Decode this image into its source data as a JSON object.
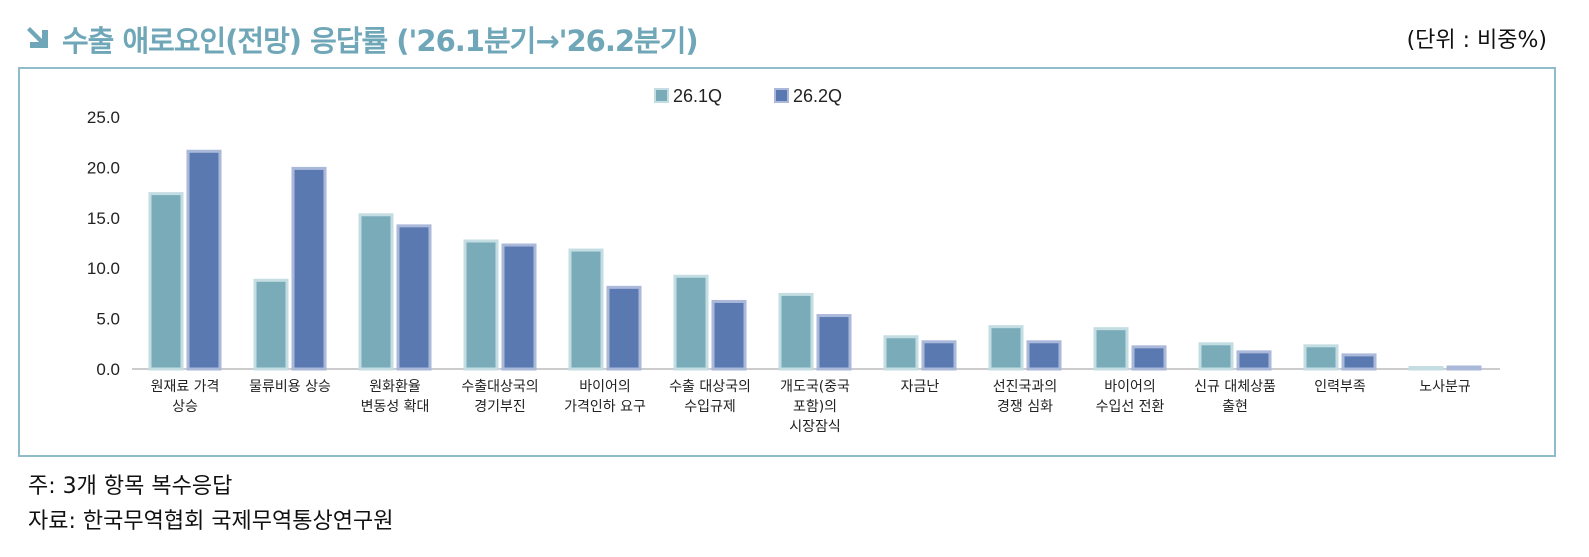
{
  "title": "수출 애로요인(전망) 응답률 ('26.1분기→'26.2분기)",
  "unit": "(단위 : 비중%)",
  "notes": [
    "주: 3개 항목 복수응답",
    "자료: 한국무역협회 국제무역통상연구원"
  ],
  "chart_data": {
    "type": "bar",
    "title": "수출 애로요인(전망) 응답률 ('26.1분기→'26.2분기)",
    "ylabel": "비중%",
    "ylim": [
      0,
      25
    ],
    "yticks": [
      "0.0",
      "5.0",
      "10.0",
      "15.0",
      "20.0",
      "25.0"
    ],
    "legend_position": "top-center",
    "grid": false,
    "categories": [
      [
        "원재료 가격",
        "상승"
      ],
      [
        "물류비용 상승"
      ],
      [
        "원화환율",
        "변동성 확대"
      ],
      [
        "수출대상국의",
        "경기부진"
      ],
      [
        "바이어의",
        "가격인하 요구"
      ],
      [
        "수출 대상국의",
        "수입규제"
      ],
      [
        "개도국(중국",
        "포함)의",
        "시장잠식"
      ],
      [
        "자금난"
      ],
      [
        "선진국과의",
        "경쟁 심화"
      ],
      [
        "바이어의",
        "수입선 전환"
      ],
      [
        "신규 대체상품",
        "출현"
      ],
      [
        "인력부족"
      ],
      [
        "노사분규"
      ]
    ],
    "series": [
      {
        "name": "26.1Q",
        "color": "#7aabb9",
        "border": "#c3dde3",
        "values": [
          17.4,
          8.8,
          15.3,
          12.7,
          11.8,
          9.2,
          7.4,
          3.2,
          4.2,
          4.0,
          2.5,
          2.3,
          0.1
        ]
      },
      {
        "name": "26.2Q",
        "color": "#5a79b0",
        "border": "#aab8da",
        "values": [
          21.6,
          19.9,
          14.2,
          12.3,
          8.1,
          6.7,
          5.3,
          2.7,
          2.7,
          2.2,
          1.7,
          1.4,
          0.2
        ]
      }
    ]
  }
}
